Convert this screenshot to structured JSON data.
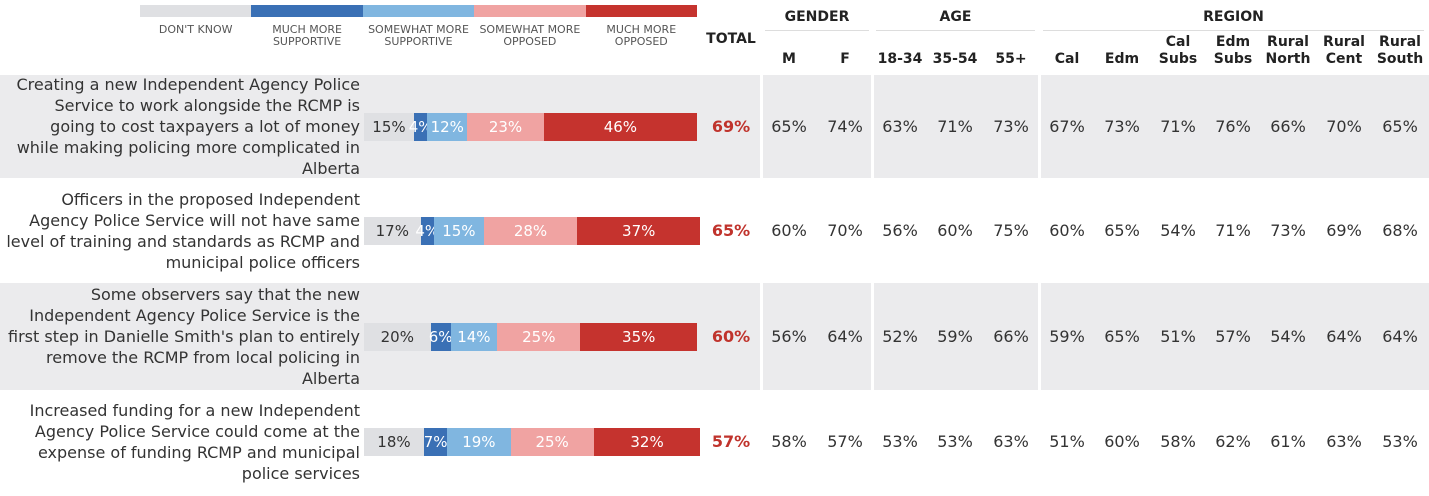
{
  "chart_data": {
    "type": "bar",
    "orientation": "horizontal",
    "stacked": true,
    "categories": [
      "Creating a new Independent Agency Police Service to work alongside the RCMP is going to cost taxpayers a lot of money while making policing more complicated in Alberta",
      "Officers in the proposed Independent Agency Police Service will not have same level of training and standards as RCMP and municipal police officers",
      "Some observers say that the new Independent Agency Police Service is the first step in Danielle Smith's plan to entirely remove the RCMP from local policing in Alberta",
      "Increased funding for a new Independent Agency Police Service could come at the expense of funding RCMP and municipal police services"
    ],
    "series": [
      {
        "name": "DON'T KNOW",
        "color": "#dfe0e3",
        "values": [
          15,
          17,
          20,
          18
        ],
        "value_labels": [
          "15%",
          "17%",
          "20%",
          "18%"
        ]
      },
      {
        "name": "MUCH MORE SUPPORTIVE",
        "color": "#3a70b5",
        "values": [
          4,
          4,
          6,
          7
        ],
        "value_labels": [
          "4%",
          "4%",
          "6%",
          "7%"
        ]
      },
      {
        "name": "SOMEWHAT MORE SUPPORTIVE",
        "color": "#80b6e0",
        "values": [
          12,
          15,
          14,
          19
        ],
        "value_labels": [
          "12%",
          "15%",
          "14%",
          "19%"
        ]
      },
      {
        "name": "SOMEWHAT MORE OPPOSED",
        "color": "#f0a3a2",
        "values": [
          23,
          28,
          25,
          25
        ],
        "value_labels": [
          "23%",
          "28%",
          "25%",
          "25%"
        ]
      },
      {
        "name": "MUCH MORE OPPOSED",
        "color": "#c5332e",
        "values": [
          46,
          37,
          35,
          32
        ],
        "value_labels": [
          "46%",
          "37%",
          "35%",
          "32%"
        ]
      }
    ]
  },
  "table": {
    "total": "TOTAL",
    "groups": [
      {
        "label": "GENDER",
        "columns": [
          "M",
          "F"
        ]
      },
      {
        "label": "AGE",
        "columns": [
          "18-34",
          "35-54",
          "55+"
        ]
      },
      {
        "label": "REGION",
        "columns": [
          "Cal",
          "Edm",
          "Cal Subs",
          "Edm Subs",
          "Rural North",
          "Rural Cent",
          "Rural South"
        ]
      }
    ],
    "rows": [
      [
        "69%",
        "65%",
        "74%",
        "63%",
        "71%",
        "73%",
        "67%",
        "73%",
        "71%",
        "76%",
        "66%",
        "70%",
        "65%"
      ],
      [
        "65%",
        "60%",
        "70%",
        "56%",
        "60%",
        "75%",
        "60%",
        "65%",
        "54%",
        "71%",
        "73%",
        "69%",
        "68%"
      ],
      [
        "60%",
        "56%",
        "64%",
        "52%",
        "59%",
        "66%",
        "59%",
        "65%",
        "51%",
        "57%",
        "54%",
        "64%",
        "64%"
      ],
      [
        "57%",
        "58%",
        "57%",
        "53%",
        "53%",
        "63%",
        "51%",
        "60%",
        "58%",
        "62%",
        "61%",
        "63%",
        "53%"
      ]
    ]
  }
}
